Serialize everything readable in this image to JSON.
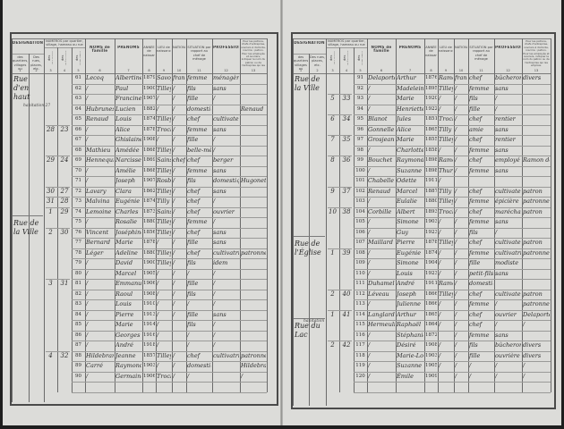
{
  "header": {
    "designation": "DÉSIGNATION",
    "quartiers": "des quartiers, villages ou hameaux",
    "rues": "Des rues, places, etc.",
    "numeros": "NUMÉROS par quartier, village, hameau ou rue",
    "maisons": "des maisons",
    "menages": "des ménages",
    "individus": "des individus",
    "noms": "NOMS de famille",
    "prenoms": "PRÉNOMS",
    "annee": "ANNÉE de naissance",
    "lieu": "LIEU de naissance",
    "nationalite": "NATIONALITÉ",
    "situation": "SITUATION par rapport au chef de ménage",
    "profession": "PROFESSION",
    "patron": "Pour les patrons, chefs d'entreprise, ouvriers à domicile, inscrire : patron. Pour les employés et ouvriers, indiquer le nom du patron ou de l'entreprise qui les emploie.",
    "col_numbers": [
      "1",
      "2",
      "3",
      "4",
      "5",
      "6",
      "7",
      "8",
      "9",
      "10",
      "11",
      "12",
      "13"
    ]
  },
  "pages": [
    {
      "streets": [
        {
          "label": "Rue d'en haut",
          "row": 0
        },
        {
          "label": "Rue de la Ville",
          "row": 14
        }
      ],
      "notes": [
        {
          "label": "habitation 27",
          "row": 3
        }
      ],
      "households": [
        {
          "house": "28",
          "household": "23",
          "row": 5
        },
        {
          "house": "29",
          "household": "24",
          "row": 8
        },
        {
          "house": "30",
          "household": "27",
          "row": 11
        },
        {
          "house": "31",
          "household": "28",
          "row": 12
        },
        {
          "house": "1",
          "household": "29",
          "row": 13
        },
        {
          "house": "2",
          "household": "30",
          "row": 15
        },
        {
          "house": "3",
          "household": "31",
          "row": 20
        },
        {
          "house": "4",
          "household": "32",
          "row": 27
        }
      ],
      "rows": [
        [
          "61",
          "Lecoq",
          "Albertine",
          "1879",
          "Savoy",
          "française",
          "femme",
          "ménagère",
          ""
        ],
        [
          "62",
          "/",
          "Paul",
          "1900",
          "Tilley",
          "/",
          "fils",
          "sans",
          ""
        ],
        [
          "63",
          "/",
          "Francine",
          "1907",
          "/",
          "/",
          "fille",
          "/",
          ""
        ],
        [
          "64",
          "Hubrunes",
          "Lucien",
          "1882",
          "/",
          "/",
          "domestique",
          "",
          "Renaud"
        ],
        [
          "65",
          "Renaud",
          "Louis",
          "1874",
          "Tilley",
          "/",
          "chef",
          "cultivateur",
          ""
        ],
        [
          "66",
          "/",
          "Alice",
          "1878",
          "Trochy",
          "/",
          "femme",
          "sans",
          ""
        ],
        [
          "67",
          "/",
          "Ghislaine",
          "1908",
          "/",
          "/",
          "fille",
          "/",
          ""
        ],
        [
          "68",
          "Mathieu",
          "Amédée",
          "1868",
          "Tilley",
          "/",
          "belle-mère",
          "/",
          ""
        ],
        [
          "69",
          "Hennequin",
          "Narcisse",
          "1869",
          "Sains",
          "chef",
          "chef",
          "berger",
          ""
        ],
        [
          "70",
          "/",
          "Amélie",
          "1868",
          "Tilley",
          "/",
          "femme",
          "sans",
          ""
        ],
        [
          "71",
          "/",
          "Joseph",
          "1907",
          "Rosbelle",
          "/",
          "fils",
          "domestique",
          "Hugonet"
        ],
        [
          "72",
          "Lavary",
          "Clara",
          "1862",
          "Tilley",
          "/",
          "chef",
          "sans",
          ""
        ],
        [
          "73",
          "Malvina",
          "Eugénie",
          "1874",
          "Tilly",
          "/",
          "chef",
          "/",
          ""
        ],
        [
          "74",
          "Lemoine",
          "Charles",
          "1873",
          "Sains",
          "/",
          "chef",
          "ouvrier",
          ""
        ],
        [
          "75",
          "/",
          "Rosalie",
          "1880",
          "Tilley",
          "/",
          "femme",
          "/",
          ""
        ],
        [
          "76",
          "Vincent",
          "Joséphine",
          "1856",
          "Tilley",
          "/",
          "chef",
          "sans",
          ""
        ],
        [
          "77",
          "Bernard",
          "Marie",
          "1878",
          "/",
          "/",
          "fille",
          "sans",
          ""
        ],
        [
          "78",
          "Léger",
          "Adeline",
          "1880",
          "Tilley",
          "/",
          "chef",
          "cultivatrice",
          "patronne"
        ],
        [
          "79",
          "/",
          "David",
          "1900",
          "Tilley",
          "/",
          "fils",
          "idem",
          ""
        ],
        [
          "80",
          "/",
          "Marcel",
          "1905",
          "/",
          "/",
          "/",
          "/",
          ""
        ],
        [
          "81",
          "/",
          "Emmanuel",
          "1906",
          "/",
          "/",
          "fille",
          "/",
          ""
        ],
        [
          "82",
          "/",
          "Raoul",
          "1908",
          "/",
          "/",
          "fils",
          "/",
          ""
        ],
        [
          "83",
          "/",
          "Louis",
          "1910",
          "/",
          "/",
          "/",
          "/",
          ""
        ],
        [
          "84",
          "/",
          "Pierre",
          "1913",
          "/",
          "/",
          "fille",
          "sans",
          ""
        ],
        [
          "85",
          "/",
          "Marie",
          "1914",
          "/",
          "",
          "fils",
          "/",
          ""
        ],
        [
          "86",
          "/",
          "Georges",
          "1916",
          "/",
          "",
          "/",
          "/",
          ""
        ],
        [
          "87",
          "/",
          "André",
          "1918",
          "/",
          "",
          "/",
          "/",
          ""
        ],
        [
          "88",
          "Hildebrand",
          "Jeanne",
          "1857",
          "Tilley",
          "/",
          "chef",
          "cultivatrice",
          "patronne"
        ],
        [
          "89",
          "Carré",
          "Raymond",
          "1903",
          "/",
          "/",
          "domestique",
          "",
          "Hildebrand"
        ],
        [
          "90",
          "/",
          "Germaine",
          "1906",
          "Trochy",
          "/",
          "/",
          "",
          "/"
        ]
      ]
    },
    {
      "streets": [
        {
          "label": "Rue de la Ville",
          "row": 0
        },
        {
          "label": "Rue de l'Église",
          "row": 16
        },
        {
          "label": "Rue du Lac",
          "row": 24
        }
      ],
      "notes": [
        {
          "label": "habitation",
          "row": 24
        }
      ],
      "households": [
        {
          "house": "5",
          "household": "33",
          "row": 2
        },
        {
          "house": "6",
          "household": "34",
          "row": 4
        },
        {
          "house": "7",
          "household": "35",
          "row": 6
        },
        {
          "house": "8",
          "household": "36",
          "row": 8
        },
        {
          "house": "9",
          "household": "37",
          "row": 11
        },
        {
          "house": "10",
          "household": "38",
          "row": 13
        },
        {
          "house": "1",
          "household": "39",
          "row": 17
        },
        {
          "house": "2",
          "household": "40",
          "row": 21
        },
        {
          "house": "1",
          "household": "41",
          "row": 23
        },
        {
          "house": "2",
          "household": "42",
          "row": 26
        }
      ],
      "rows": [
        [
          "91",
          "Delaporte",
          "Arthur",
          "1876",
          "Ramey-sur-Ource",
          "française",
          "chef",
          "bûcheron",
          "divers"
        ],
        [
          "92",
          "/",
          "Madeleine",
          "1895",
          "Tilley",
          "/",
          "femme",
          "sans",
          ""
        ],
        [
          "93",
          "/",
          "Marie",
          "1920",
          "/",
          "/",
          "fils",
          "/",
          ""
        ],
        [
          "94",
          "/",
          "Henriette",
          "1922",
          "/",
          "/",
          "fille",
          "/",
          ""
        ],
        [
          "95",
          "Blanot",
          "Jules",
          "1851",
          "Trochy",
          "/",
          "chef",
          "rentier",
          ""
        ],
        [
          "96",
          "Gonnelle",
          "Alice",
          "1865",
          "Tilly",
          "/",
          "amie",
          "sans",
          ""
        ],
        [
          "97",
          "Grosjean",
          "Marie",
          "1855",
          "Tilley",
          "/",
          "chef",
          "rentier",
          ""
        ],
        [
          "98",
          "/",
          "Charlotte",
          "1858",
          "/",
          "/",
          "femme",
          "sans",
          ""
        ],
        [
          "99",
          "Bouchet",
          "Raymond",
          "1898",
          "Ramerupt",
          "/",
          "chef",
          "employé",
          "Ramon de la Ville"
        ],
        [
          "100",
          "/",
          "Suzanne",
          "1898",
          "Thury",
          "/",
          "femme",
          "sans",
          ""
        ],
        [
          "101",
          "Chabelle",
          "Odette",
          "1911",
          "/",
          "",
          "",
          "",
          ""
        ],
        [
          "102",
          "Renaud",
          "Marcel",
          "1887",
          "Tilly",
          "/",
          "chef",
          "cultivateur",
          "patron"
        ],
        [
          "103",
          "/",
          "Eulalie",
          "1880",
          "Tilley",
          "/",
          "femme",
          "épicière",
          "patronne"
        ],
        [
          "104",
          "Corbille",
          "Albert",
          "1893",
          "Trochy",
          "/",
          "chef",
          "maréchal",
          "patron"
        ],
        [
          "105",
          "/",
          "Simone",
          "1903",
          "/",
          "/",
          "femme",
          "sans",
          ""
        ],
        [
          "106",
          "/",
          "Guy",
          "1923",
          "/",
          "/",
          "fils",
          "/",
          ""
        ],
        [
          "107",
          "Maillard",
          "Pierre",
          "1878",
          "Tilley",
          "/",
          "chef",
          "cultivateur",
          "patron"
        ],
        [
          "108",
          "/",
          "Eugénie",
          "1874",
          "/",
          "/",
          "femme",
          "cultivatrice",
          "patronne"
        ],
        [
          "109",
          "/",
          "Simone",
          "1904",
          "/",
          "/",
          "fille",
          "modiste",
          ""
        ],
        [
          "110",
          "/",
          "Louis",
          "1923",
          "/",
          "/",
          "petit-fils",
          "sans",
          ""
        ],
        [
          "111",
          "Duhamel",
          "André",
          "1911",
          "Ramey",
          "/",
          "domestique",
          "",
          ""
        ],
        [
          "112",
          "Léveau",
          "Joseph",
          "1866",
          "Tilley",
          "/",
          "chef",
          "cultivateur",
          "patron"
        ],
        [
          "113",
          "/",
          "Julienne",
          "1866",
          "/",
          "/",
          "femme",
          "/",
          "patronne"
        ],
        [
          "114",
          "Langlard",
          "Arthur",
          "1865",
          "/",
          "/",
          "chef",
          "ouvrier",
          "Delaporte"
        ],
        [
          "115",
          "Hermeulin",
          "Raphaël",
          "1864",
          "/",
          "/",
          "chef",
          "/",
          "/"
        ],
        [
          "116",
          "/",
          "Stéphanie",
          "1872",
          "",
          "/",
          "femme",
          "sans",
          ""
        ],
        [
          "117",
          "/",
          "Désiré",
          "1908",
          "/",
          "/",
          "fils",
          "bûcheron",
          "divers"
        ],
        [
          "118",
          "/",
          "Marie-Louise",
          "1903",
          "/",
          "/",
          "fille",
          "ouvrière",
          "divers"
        ],
        [
          "119",
          "/",
          "Suzanne",
          "1905",
          "/",
          "/",
          "/",
          "/",
          "/"
        ],
        [
          "120",
          "/",
          "Émile",
          "1909",
          "",
          "/",
          "/",
          "/",
          "/"
        ]
      ]
    }
  ]
}
